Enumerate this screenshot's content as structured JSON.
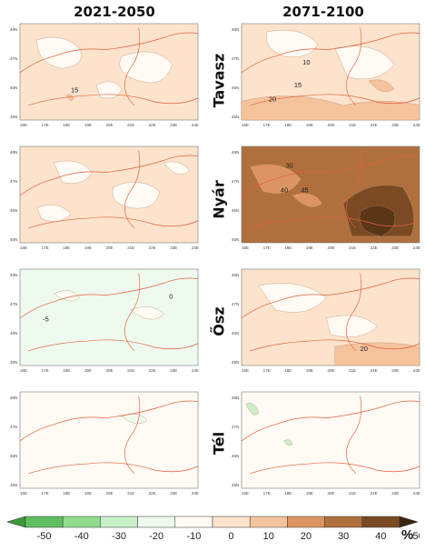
{
  "columns": [
    "2021-2050",
    "2071-2100"
  ],
  "seasons": [
    "Tavasz",
    "Nyár",
    "Ősz",
    "Tél"
  ],
  "axis": {
    "lat_ticks": [
      "48N",
      "47N",
      "46N",
      "45N"
    ],
    "lon_ticks": [
      "16E",
      "17E",
      "18E",
      "19E",
      "20E",
      "21E",
      "22E",
      "23E",
      "24E"
    ]
  },
  "panels": [
    {
      "season": "Tavasz",
      "period": "2021-2050",
      "dominant_class": "10-20",
      "contour_labels": [
        "15"
      ]
    },
    {
      "season": "Tavasz",
      "period": "2071-2100",
      "dominant_class": "10-20",
      "contour_labels": [
        "10",
        "15",
        "20"
      ]
    },
    {
      "season": "Nyár",
      "period": "2021-2050",
      "dominant_class": "10-20",
      "contour_labels": []
    },
    {
      "season": "Nyár",
      "period": "2071-2100",
      "dominant_class": "30-50",
      "contour_labels": [
        "30",
        "40",
        "45"
      ]
    },
    {
      "season": "Ősz",
      "period": "2021-2050",
      "dominant_class": "-10-0",
      "contour_labels": [
        "0",
        "-5"
      ]
    },
    {
      "season": "Ősz",
      "period": "2071-2100",
      "dominant_class": "10-20",
      "contour_labels": [
        "20"
      ]
    },
    {
      "season": "Tél",
      "period": "2021-2050",
      "dominant_class": "0-10",
      "contour_labels": []
    },
    {
      "season": "Tél",
      "period": "2071-2100",
      "dominant_class": "0-10",
      "contour_labels": []
    }
  ],
  "legend": {
    "unit": "%",
    "ticks": [
      "-50",
      "-40",
      "-30",
      "-20",
      "-10",
      "0",
      "10",
      "20",
      "30",
      "40",
      "50"
    ],
    "colors": [
      "#3a9a3a",
      "#5fbe5f",
      "#8fdc8f",
      "#c8f0c8",
      "#eefaee",
      "#fffaf3",
      "#fde3cc",
      "#f4c39c",
      "#dc9464",
      "#b0703e",
      "#7a4a22",
      "#3a2410"
    ]
  }
}
